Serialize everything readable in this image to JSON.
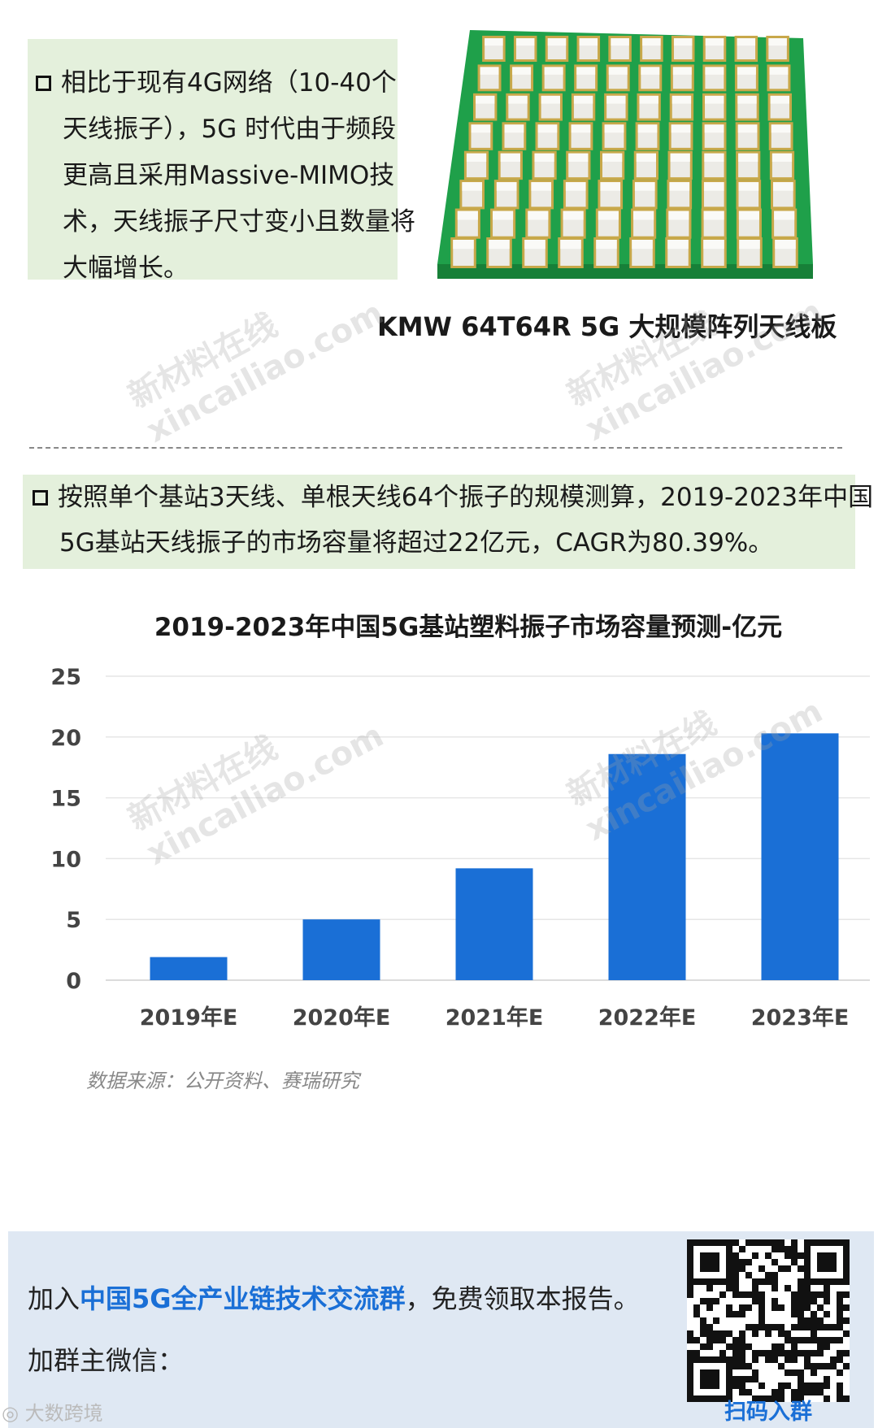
{
  "bullet1": "相比于现有4G网络（10-40个天线振子），5G 时代由于频段更高且采用Massive-MIMO技术，天线振子尺寸变小且数量将大幅增长。",
  "image_caption": "KMW 64T64R 5G 大规模阵列天线板",
  "bullet2": "按照单个基站3天线、单根天线64个振子的规模测算，2019-2023年中国5G基站天线振子的市场容量将超过22亿元，CAGR为80.39%。",
  "watermark": {
    "cn": "新材料在线",
    "en": "xincailiao.com"
  },
  "chart_data": {
    "type": "bar",
    "title": "2019-2023年中国5G基站塑料振子市场容量预测-亿元",
    "categories": [
      "2019年E",
      "2020年E",
      "2021年E",
      "2022年E",
      "2023年E"
    ],
    "values": [
      1.9,
      5.0,
      9.2,
      18.6,
      20.3
    ],
    "ylim": [
      0,
      25
    ],
    "yticks": [
      "0",
      "5",
      "10",
      "15",
      "20",
      "25"
    ],
    "grid": true,
    "bar_color": "#1a6fd6"
  },
  "source": "数据来源：公开资料、赛瑞研究",
  "footer": {
    "join_prefix": "加入",
    "join_highlight": "中国5G全产业链技术交流群",
    "join_suffix": "，免费领取本报告。",
    "wechat_label": "加群主微信：",
    "qr_label": "扫码入群"
  },
  "brand": "大数跨境"
}
